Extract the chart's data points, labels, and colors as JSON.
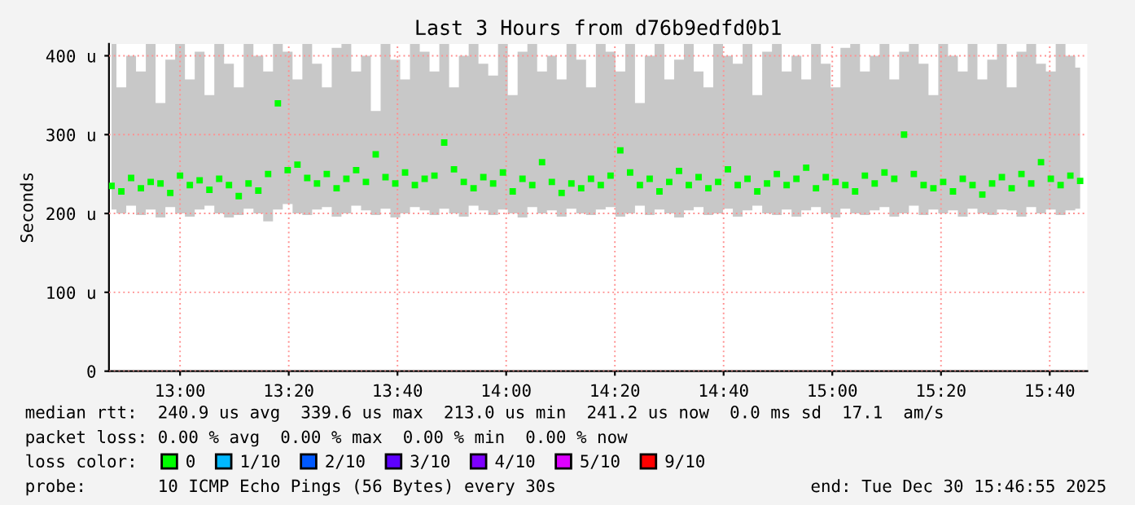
{
  "chart_data": {
    "type": "scatter",
    "title": "Last 3 Hours from d76b9edfd0b1",
    "ylabel": "Seconds",
    "x": [
      12.79,
      12.82,
      12.85,
      12.88,
      12.91,
      12.94,
      12.97,
      13.0,
      13.03,
      13.06,
      13.09,
      13.12,
      13.15,
      13.18,
      13.21,
      13.24,
      13.27,
      13.3,
      13.33,
      13.36,
      13.39,
      13.42,
      13.45,
      13.48,
      13.51,
      13.54,
      13.57,
      13.6,
      13.63,
      13.66,
      13.69,
      13.72,
      13.75,
      13.78,
      13.81,
      13.84,
      13.87,
      13.9,
      13.93,
      13.96,
      13.99,
      14.02,
      14.05,
      14.08,
      14.11,
      14.14,
      14.17,
      14.2,
      14.23,
      14.26,
      14.29,
      14.32,
      14.35,
      14.38,
      14.41,
      14.44,
      14.47,
      14.5,
      14.53,
      14.56,
      14.59,
      14.62,
      14.65,
      14.68,
      14.71,
      14.74,
      14.77,
      14.8,
      14.83,
      14.86,
      14.89,
      14.92,
      14.95,
      14.98,
      15.01,
      15.04,
      15.07,
      15.1,
      15.13,
      15.16,
      15.19,
      15.22,
      15.25,
      15.28,
      15.31,
      15.34,
      15.37,
      15.4,
      15.43,
      15.46,
      15.49,
      15.52,
      15.55,
      15.58,
      15.61,
      15.64,
      15.67,
      15.7,
      15.73,
      15.76
    ],
    "series": [
      {
        "name": "0",
        "color": "#00ff00",
        "values": [
          235,
          228,
          245,
          232,
          240,
          238,
          226,
          248,
          236,
          242,
          230,
          244,
          236,
          222,
          238,
          229,
          250,
          339.6,
          255,
          262,
          245,
          238,
          250,
          232,
          244,
          255,
          240,
          275,
          246,
          238,
          252,
          236,
          244,
          248,
          290,
          256,
          240,
          232,
          246,
          238,
          252,
          228,
          244,
          236,
          265,
          240,
          226,
          238,
          232,
          244,
          236,
          248,
          280,
          252,
          236,
          244,
          228,
          240,
          254,
          236,
          246,
          232,
          240,
          256,
          236,
          244,
          228,
          238,
          250,
          236,
          244,
          258,
          232,
          246,
          240,
          236,
          228,
          248,
          238,
          252,
          244,
          300,
          250,
          236,
          232,
          240,
          228,
          244,
          236,
          224,
          238,
          246,
          232,
          250,
          238,
          265,
          244,
          236,
          248,
          241.2
        ],
        "lower": [
          205,
          200,
          210,
          198,
          205,
          195,
          208,
          200,
          196,
          205,
          210,
          200,
          195,
          198,
          206,
          200,
          190,
          205,
          212,
          200,
          198,
          205,
          208,
          196,
          200,
          210,
          204,
          198,
          206,
          195,
          200,
          208,
          204,
          198,
          206,
          200,
          196,
          210,
          204,
          198,
          205,
          200,
          195,
          208,
          200,
          204,
          196,
          206,
          200,
          198,
          205,
          208,
          196,
          200,
          210,
          198,
          205,
          200,
          195,
          204,
          208,
          198,
          200,
          206,
          196,
          204,
          210,
          200,
          198,
          205,
          196,
          204,
          208,
          200,
          195,
          206,
          200,
          198,
          204,
          208,
          196,
          200,
          210,
          198,
          205,
          200,
          204,
          196,
          206,
          200,
          198,
          205,
          204,
          196,
          208,
          200,
          205,
          198,
          204,
          206
        ],
        "upper": [
          415,
          360,
          400,
          380,
          415,
          340,
          395,
          415,
          370,
          405,
          350,
          415,
          390,
          360,
          415,
          400,
          380,
          415,
          405,
          370,
          415,
          390,
          360,
          410,
          415,
          380,
          400,
          330,
          415,
          395,
          370,
          415,
          405,
          380,
          415,
          360,
          400,
          415,
          390,
          375,
          415,
          350,
          405,
          415,
          380,
          400,
          370,
          415,
          395,
          360,
          415,
          405,
          380,
          415,
          340,
          400,
          415,
          370,
          395,
          415,
          380,
          360,
          415,
          400,
          390,
          415,
          350,
          405,
          415,
          380,
          400,
          370,
          415,
          390,
          360,
          410,
          415,
          380,
          400,
          415,
          370,
          405,
          415,
          390,
          350,
          415,
          400,
          380,
          415,
          370,
          395,
          415,
          360,
          405,
          415,
          390,
          380,
          415,
          400,
          385
        ]
      },
      {
        "name": "1/10",
        "color": "#00b8ff",
        "values": [
          null,
          null,
          null,
          null,
          null,
          null,
          null,
          null,
          null,
          null,
          null,
          null,
          null,
          null,
          null,
          null,
          null,
          null,
          null,
          null,
          null,
          null,
          null,
          null,
          null,
          null,
          null,
          null,
          null,
          null,
          null,
          null,
          null,
          null,
          null,
          null,
          null,
          null,
          null,
          null,
          null,
          null,
          null,
          null,
          null,
          null,
          null,
          null,
          null,
          null,
          null,
          null,
          null,
          null,
          null,
          null,
          null,
          null,
          null,
          null,
          null,
          null,
          null,
          null,
          null,
          null,
          null,
          null,
          null,
          null,
          null,
          null,
          null,
          null,
          null,
          null,
          null,
          null,
          null,
          null,
          null,
          null,
          null,
          null,
          null,
          null,
          null,
          null,
          null,
          null,
          null,
          null,
          null,
          null,
          null,
          null,
          null,
          null,
          null,
          null
        ]
      },
      {
        "name": "2/10",
        "color": "#0059ff",
        "values": [
          null,
          null,
          null,
          null,
          null,
          null,
          null,
          null,
          null,
          null,
          null,
          null,
          null,
          null,
          null,
          null,
          null,
          null,
          null,
          null,
          null,
          null,
          null,
          null,
          null,
          null,
          null,
          null,
          null,
          null,
          null,
          null,
          null,
          null,
          null,
          null,
          null,
          null,
          null,
          null,
          null,
          null,
          null,
          null,
          null,
          null,
          null,
          null,
          null,
          null,
          null,
          null,
          null,
          null,
          null,
          null,
          null,
          null,
          null,
          null,
          null,
          null,
          null,
          null,
          null,
          null,
          null,
          null,
          null,
          null,
          null,
          null,
          null,
          null,
          null,
          null,
          null,
          null,
          null,
          null,
          null,
          null,
          null,
          null,
          null,
          null,
          null,
          null,
          null,
          null,
          null,
          null,
          null,
          null,
          null,
          null,
          null,
          null,
          null,
          null
        ]
      },
      {
        "name": "3/10",
        "color": "#5e00ff",
        "values": [
          null,
          null,
          null,
          null,
          null,
          null,
          null,
          null,
          null,
          null,
          null,
          null,
          null,
          null,
          null,
          null,
          null,
          null,
          null,
          null,
          null,
          null,
          null,
          null,
          null,
          null,
          null,
          null,
          null,
          null,
          null,
          null,
          null,
          null,
          null,
          null,
          null,
          null,
          null,
          null,
          null,
          null,
          null,
          null,
          null,
          null,
          null,
          null,
          null,
          null,
          null,
          null,
          null,
          null,
          null,
          null,
          null,
          null,
          null,
          null,
          null,
          null,
          null,
          null,
          null,
          null,
          null,
          null,
          null,
          null,
          null,
          null,
          null,
          null,
          null,
          null,
          null,
          null,
          null,
          null,
          null,
          null,
          null,
          null,
          null,
          null,
          null,
          null,
          null,
          null,
          null,
          null,
          null,
          null,
          null,
          null,
          null,
          null,
          null,
          null
        ]
      },
      {
        "name": "4/10",
        "color": "#7e00ff",
        "values": [
          null,
          null,
          null,
          null,
          null,
          null,
          null,
          null,
          null,
          null,
          null,
          null,
          null,
          null,
          null,
          null,
          null,
          null,
          null,
          null,
          null,
          null,
          null,
          null,
          null,
          null,
          null,
          null,
          null,
          null,
          null,
          null,
          null,
          null,
          null,
          null,
          null,
          null,
          null,
          null,
          null,
          null,
          null,
          null,
          null,
          null,
          null,
          null,
          null,
          null,
          null,
          null,
          null,
          null,
          null,
          null,
          null,
          null,
          null,
          null,
          null,
          null,
          null,
          null,
          null,
          null,
          null,
          null,
          null,
          null,
          null,
          null,
          null,
          null,
          null,
          null,
          null,
          null,
          null,
          null,
          null,
          null,
          null,
          null,
          null,
          null,
          null,
          null,
          null,
          null,
          null,
          null,
          null,
          null,
          null,
          null,
          null,
          null,
          null,
          null
        ]
      },
      {
        "name": "5/10",
        "color": "#dd00ff",
        "values": [
          null,
          null,
          null,
          null,
          null,
          null,
          null,
          null,
          null,
          null,
          null,
          null,
          null,
          null,
          null,
          null,
          null,
          null,
          null,
          null,
          null,
          null,
          null,
          null,
          null,
          null,
          null,
          null,
          null,
          null,
          null,
          null,
          null,
          null,
          null,
          null,
          null,
          null,
          null,
          null,
          null,
          null,
          null,
          null,
          null,
          null,
          null,
          null,
          null,
          null,
          null,
          null,
          null,
          null,
          null,
          null,
          null,
          null,
          null,
          null,
          null,
          null,
          null,
          null,
          null,
          null,
          null,
          null,
          null,
          null,
          null,
          null,
          null,
          null,
          null,
          null,
          null,
          null,
          null,
          null,
          null,
          null,
          null,
          null,
          null,
          null,
          null,
          null,
          null,
          null,
          null,
          null,
          null,
          null,
          null,
          null,
          null,
          null,
          null,
          null
        ]
      },
      {
        "name": "9/10",
        "color": "#ff0000",
        "values": [
          null,
          null,
          null,
          null,
          null,
          null,
          null,
          null,
          null,
          null,
          null,
          null,
          null,
          null,
          null,
          null,
          null,
          null,
          null,
          null,
          null,
          null,
          null,
          null,
          null,
          null,
          null,
          null,
          null,
          null,
          null,
          null,
          null,
          null,
          null,
          null,
          null,
          null,
          null,
          null,
          null,
          null,
          null,
          null,
          null,
          null,
          null,
          null,
          null,
          null,
          null,
          null,
          null,
          null,
          null,
          null,
          null,
          null,
          null,
          null,
          null,
          null,
          null,
          null,
          null,
          null,
          null,
          null,
          null,
          null,
          null,
          null,
          null,
          null,
          null,
          null,
          null,
          null,
          null,
          null,
          null,
          null,
          null,
          null,
          null,
          null,
          null,
          null,
          null,
          null,
          null,
          null,
          null,
          null,
          null,
          null,
          null,
          null,
          null,
          null
        ]
      }
    ],
    "legend_title": "loss color:",
    "legend": "bottom",
    "marker": "square",
    "grid": true,
    "xlim": [
      12.782,
      15.782
    ],
    "xticks": [
      {
        "value": 13.0,
        "label": "13:00"
      },
      {
        "value": 13.3333,
        "label": "13:20"
      },
      {
        "value": 13.6667,
        "label": "13:40"
      },
      {
        "value": 14.0,
        "label": "14:00"
      },
      {
        "value": 14.3333,
        "label": "14:20"
      },
      {
        "value": 14.6667,
        "label": "14:40"
      },
      {
        "value": 15.0,
        "label": "15:00"
      },
      {
        "value": 15.3333,
        "label": "15:20"
      },
      {
        "value": 15.6667,
        "label": "15:40"
      }
    ],
    "ylim": [
      0,
      415
    ],
    "yticks": [
      0,
      {
        "value": 100,
        "label": "100 u"
      },
      {
        "value": 200,
        "label": "200 u"
      },
      {
        "value": 300,
        "label": "300 u"
      },
      {
        "value": 400,
        "label": "400 u"
      }
    ],
    "annotations": [
      "median rtt:  240.9 us avg  339.6 us max  213.0 us min  241.2 us now  0.0 ms sd  17.1  am/s",
      "packet loss: 0.00 % avg  0.00 % max  0.00 % min  0.00 % now",
      "probe:       10 ICMP Echo Pings (56 Bytes) every 30s",
      "end: Tue Dec 30 15:46:55 2025"
    ]
  }
}
